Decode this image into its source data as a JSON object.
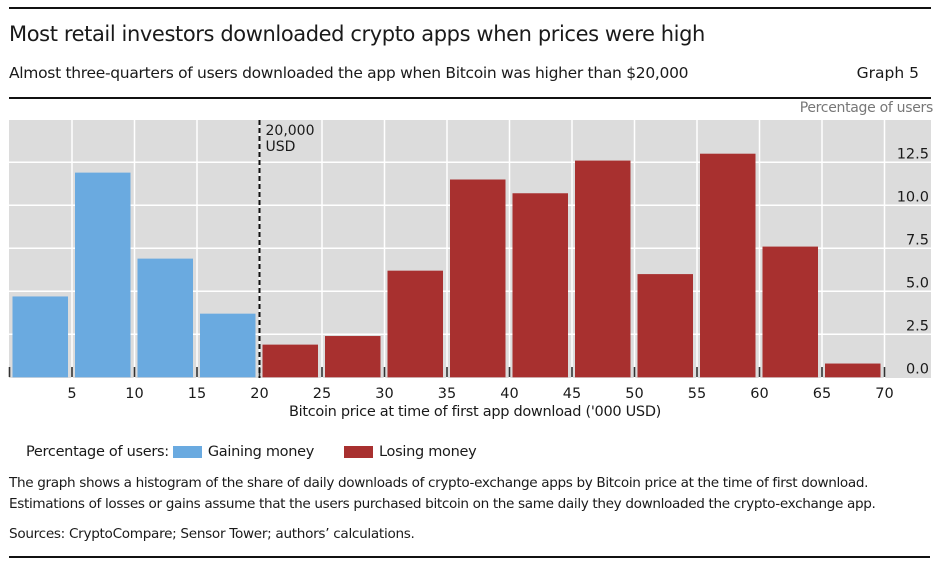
{
  "header": {
    "title": "Most retail investors downloaded crypto apps when prices were high",
    "subtitle": "Almost three-quarters of users downloaded the app when Bitcoin was higher than $20,000",
    "graph_number": "Graph 5"
  },
  "chart_data": {
    "type": "bar",
    "title": "Most retail investors downloaded crypto apps when prices were high",
    "xlabel": "Bitcoin price at time of first app download ('000 USD)",
    "ylabel": "Percentage of users",
    "xlim": [
      0,
      70
    ],
    "ylim": [
      0,
      14
    ],
    "x_ticks": [
      5,
      10,
      15,
      20,
      25,
      30,
      35,
      40,
      45,
      50,
      55,
      60,
      65,
      70
    ],
    "y_ticks": [
      "0.0",
      "2.5",
      "5.0",
      "7.5",
      "10.0",
      "12.5"
    ],
    "y_axis_side": "right",
    "grid": true,
    "bins": [
      {
        "from": 0,
        "to": 5,
        "value": 4.7,
        "series": "Gaining money"
      },
      {
        "from": 5,
        "to": 10,
        "value": 11.9,
        "series": "Gaining money"
      },
      {
        "from": 10,
        "to": 15,
        "value": 6.9,
        "series": "Gaining money"
      },
      {
        "from": 15,
        "to": 20,
        "value": 3.7,
        "series": "Gaining money"
      },
      {
        "from": 20,
        "to": 25,
        "value": 1.9,
        "series": "Losing money"
      },
      {
        "from": 25,
        "to": 30,
        "value": 2.4,
        "series": "Losing money"
      },
      {
        "from": 30,
        "to": 35,
        "value": 6.2,
        "series": "Losing money"
      },
      {
        "from": 35,
        "to": 40,
        "value": 11.5,
        "series": "Losing money"
      },
      {
        "from": 40,
        "to": 45,
        "value": 10.7,
        "series": "Losing money"
      },
      {
        "from": 45,
        "to": 50,
        "value": 12.6,
        "series": "Losing money"
      },
      {
        "from": 50,
        "to": 55,
        "value": 6.0,
        "series": "Losing money"
      },
      {
        "from": 55,
        "to": 60,
        "value": 13.0,
        "series": "Losing money"
      },
      {
        "from": 60,
        "to": 65,
        "value": 7.6,
        "series": "Losing money"
      },
      {
        "from": 65,
        "to": 70,
        "value": 0.8,
        "series": "Losing money"
      }
    ],
    "series": [
      {
        "name": "Gaining money",
        "color": "#6aaae0"
      },
      {
        "name": "Losing money",
        "color": "#a8302f"
      }
    ],
    "annotation": {
      "x": 20,
      "line1": "20,000",
      "line2": "USD",
      "style": "dashed vertical line"
    },
    "legend": {
      "prefix": "Percentage of users:",
      "placement": "bottom-left"
    }
  },
  "footer": {
    "note_line1": "The graph shows a histogram of the share of daily downloads of crypto-exchange apps by Bitcoin price at the time of first download.",
    "note_line2": "Estimations of losses or gains assume that the users purchased bitcoin on the same daily they downloaded the crypto-exchange app.",
    "sources": "Sources: CryptoCompare; Sensor Tower; authors’ calculations."
  },
  "colors": {
    "plot_background": "#dcdcdc",
    "gaining": "#6aaae0",
    "losing": "#a8302f"
  }
}
